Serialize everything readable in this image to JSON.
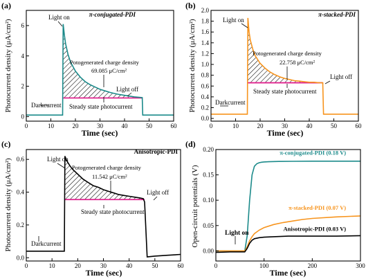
{
  "panels": [
    {
      "letter": "(a)",
      "title": "π-conjugated-PDI",
      "xlabel": "Time (sec)",
      "ylabel": "Photocurrent density (μA/cm²)",
      "notes": {
        "light_on": "Light on",
        "light_off": "Light off",
        "dark": "Darkcurrent",
        "steady": "Steady state photocurrent",
        "charge_label": "Potogenerated charge density",
        "charge_value": "69.085 μC/cm²"
      }
    },
    {
      "letter": "(b)",
      "title": "π-stacked-PDI",
      "xlabel": "Time (sec)",
      "ylabel": "Photocurrent density (μA/cm²)",
      "notes": {
        "light_on": "Light on",
        "light_off": "Light off",
        "dark": "Darkcurrent",
        "steady": "Steady state photocurrent",
        "charge_label": "Potogenerated charge density",
        "charge_value": "22.758 μC/cm²"
      }
    },
    {
      "letter": "(c)",
      "title": "Anisotropic-PDI",
      "xlabel": "Time (sec)",
      "ylabel": "Photocurrent density (μA/cm²)",
      "notes": {
        "light_on": "Light on",
        "light_off": "Light off",
        "dark": "Darkcurrent",
        "steady": "Steady state photocurrent",
        "charge_label": "Potogenerated charge density",
        "charge_value": "11.542 μC/cm²"
      }
    },
    {
      "letter": "(d)",
      "title": "",
      "xlabel": "Time (sec)",
      "ylabel": "Open-circuit potentials (V)",
      "notes": {
        "light_on": "Light on"
      }
    }
  ],
  "chart_data": [
    {
      "type": "line",
      "xlim": [
        0,
        60
      ],
      "ylim": [
        -0.3,
        7.0
      ],
      "xticks": [
        0,
        10,
        20,
        30,
        40,
        50,
        60
      ],
      "yticks": [
        0,
        2,
        4,
        6
      ],
      "color": "#1b8a8a",
      "fill_color": "#000000",
      "steady_color": "#e0208e",
      "series": [
        {
          "x": [
            0,
            5,
            10,
            14.8,
            15.0,
            15.5,
            16,
            17,
            18,
            20,
            22,
            24,
            26,
            28,
            30,
            32,
            34,
            36,
            38,
            40,
            42,
            44,
            46,
            47.2,
            47.4,
            50,
            55,
            60
          ],
          "y": [
            0.1,
            0.1,
            0.1,
            0.1,
            6.1,
            5.4,
            4.8,
            4.1,
            3.6,
            3.0,
            2.6,
            2.3,
            2.1,
            1.95,
            1.8,
            1.7,
            1.6,
            1.52,
            1.45,
            1.4,
            1.35,
            1.3,
            1.27,
            1.25,
            0.1,
            0.1,
            0.1,
            0.1
          ]
        }
      ],
      "on_t": 15,
      "off_t": 47.2,
      "steady": 1.23
    },
    {
      "type": "line",
      "xlim": [
        0,
        60
      ],
      "ylim": [
        -0.05,
        2.0
      ],
      "xticks": [
        0,
        10,
        20,
        30,
        40,
        50,
        60
      ],
      "yticks": [
        0.0,
        0.2,
        0.4,
        0.6,
        0.8,
        1.0,
        1.2,
        1.4,
        1.6,
        1.8,
        2.0
      ],
      "color": "#f7941d",
      "fill_color": "#000000",
      "steady_color": "#e0208e",
      "series": [
        {
          "x": [
            0,
            5,
            10,
            14.8,
            15.0,
            15.5,
            16,
            17,
            18,
            20,
            22,
            24,
            26,
            28,
            30,
            32,
            34,
            36,
            38,
            40,
            42,
            44,
            45.5,
            45.8,
            50,
            55,
            60
          ],
          "y": [
            0.08,
            0.08,
            0.08,
            0.08,
            1.86,
            1.6,
            1.45,
            1.28,
            1.16,
            1.02,
            0.93,
            0.86,
            0.81,
            0.77,
            0.74,
            0.72,
            0.7,
            0.69,
            0.68,
            0.67,
            0.67,
            0.66,
            0.66,
            0.08,
            0.08,
            0.08,
            0.08
          ]
        }
      ],
      "on_t": 15,
      "off_t": 45.5,
      "steady": 0.66
    },
    {
      "type": "line",
      "xlim": [
        0,
        60
      ],
      "ylim": [
        -0.02,
        0.66
      ],
      "xticks": [
        0,
        10,
        20,
        30,
        40,
        50,
        60
      ],
      "yticks": [
        0.0,
        0.2,
        0.4,
        0.6
      ],
      "color": "#000000",
      "fill_color": "#000000",
      "steady_color": "#e0208e",
      "series": [
        {
          "x": [
            0,
            5,
            10,
            14.8,
            15.0,
            15.5,
            16,
            17,
            18,
            20,
            22,
            24,
            26,
            28,
            30,
            32,
            34,
            36,
            38,
            40,
            42,
            44,
            45.5,
            46.0,
            47.0,
            50,
            55,
            60
          ],
          "y": [
            0.04,
            0.04,
            0.04,
            0.04,
            0.62,
            0.6,
            0.585,
            0.56,
            0.54,
            0.51,
            0.48,
            0.46,
            0.44,
            0.43,
            0.415,
            0.405,
            0.395,
            0.385,
            0.38,
            0.375,
            0.37,
            0.365,
            0.36,
            0.34,
            0.005,
            0.01,
            0.015,
            0.02
          ]
        }
      ],
      "on_t": 15,
      "off_t": 46.0,
      "steady": 0.355
    },
    {
      "type": "line",
      "xlim": [
        0,
        300
      ],
      "ylim": [
        -0.02,
        0.2
      ],
      "xticks": [
        0,
        100,
        200,
        300
      ],
      "yticks": [
        0.0,
        0.05,
        0.1,
        0.15,
        0.2
      ],
      "series": [
        {
          "name": "π-conjugated-PDI (0.18 V)",
          "color": "#1b8a8a",
          "x": [
            0,
            30,
            60,
            65,
            70,
            75,
            80,
            85,
            90,
            95,
            100,
            110,
            130,
            160,
            200,
            250,
            300
          ],
          "y": [
            0.0,
            0.0,
            0.0,
            0.03,
            0.1,
            0.15,
            0.167,
            0.172,
            0.174,
            0.175,
            0.1755,
            0.176,
            0.1765,
            0.1768,
            0.177,
            0.177,
            0.177
          ]
        },
        {
          "name": "π-stacked-PDI (0.07 V)",
          "color": "#f7941d",
          "x": [
            0,
            30,
            60,
            65,
            70,
            75,
            80,
            90,
            100,
            120,
            140,
            160,
            180,
            200,
            250,
            300
          ],
          "y": [
            0.0,
            0.0,
            0.0,
            0.008,
            0.02,
            0.028,
            0.034,
            0.041,
            0.046,
            0.052,
            0.056,
            0.059,
            0.062,
            0.064,
            0.067,
            0.069
          ]
        },
        {
          "name": "Anisotropic-PDI (0.03 V)",
          "color": "#000000",
          "x": [
            0,
            30,
            60,
            65,
            70,
            75,
            80,
            90,
            100,
            120,
            150,
            200,
            250,
            300
          ],
          "y": [
            -0.003,
            -0.002,
            -0.002,
            0.005,
            0.015,
            0.021,
            0.024,
            0.026,
            0.027,
            0.028,
            0.029,
            0.029,
            0.029,
            0.03
          ]
        }
      ]
    }
  ]
}
